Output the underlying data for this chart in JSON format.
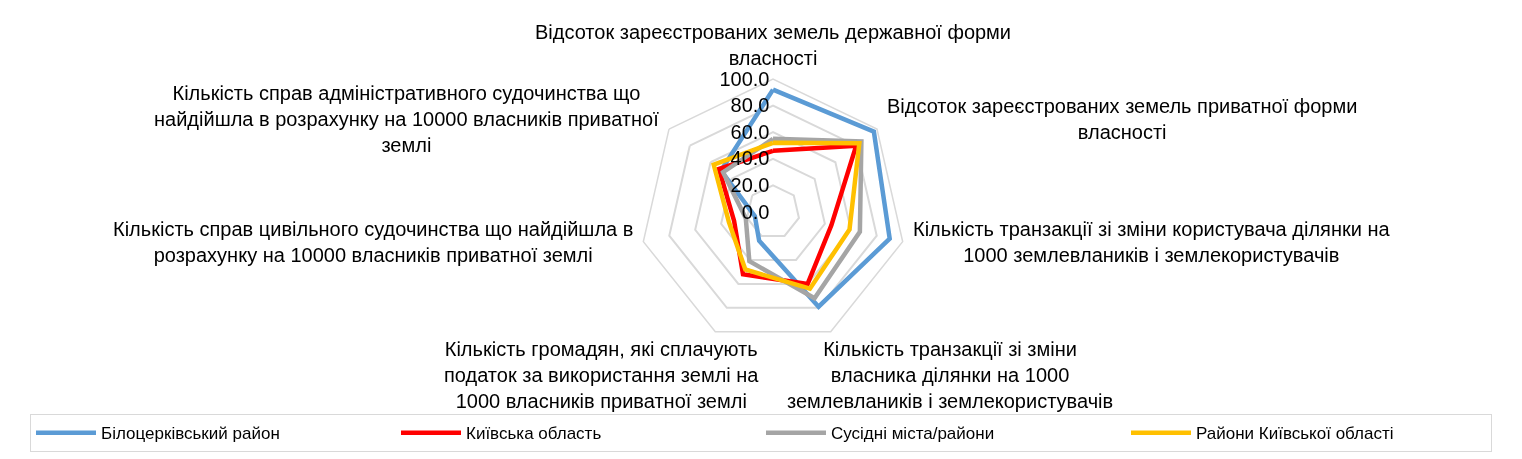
{
  "chart_data": {
    "type": "radar",
    "categories": [
      "Відсоток зареєстрованих земель державної форми власності",
      "Відсоток зареєстрованих земель приватної форми власності",
      "Кількість транзакції зі зміни користувача ділянки на 1000 землевлаників і землекористувачів",
      "Кількість транзакції зі зміни власника ділянки на 1000 землевлаників і землекористувачів",
      "Кількість громадян, які сплачують податок за використання землі на 1000 власників приватної землі",
      "Кількість справ цивільного судочинства що найдійшла в розрахунку на 10000 власників приватної землі",
      "Кількість справ адміністративного судочинства що найдійшла в розрахунку на 10000 власників приватної землі"
    ],
    "series": [
      {
        "name": "Білоцерківський район",
        "color": "#5b9bd5",
        "values": [
          92,
          97,
          90,
          79,
          24,
          14,
          50
        ]
      },
      {
        "name": "Київська область",
        "color": "#ff0000",
        "values": [
          46,
          80,
          45,
          60,
          52,
          30,
          52
        ]
      },
      {
        "name": "Сусідні міста/райони",
        "color": "#a5a5a5",
        "values": [
          55,
          85,
          67,
          72,
          41,
          21,
          48
        ]
      },
      {
        "name": "Райони Київської області",
        "color": "#ffc000",
        "values": [
          52,
          83,
          59,
          64,
          48,
          34,
          57
        ]
      }
    ],
    "ylim": [
      0,
      100
    ],
    "yticks": [
      {
        "value": 0,
        "label": "0.0"
      },
      {
        "value": 20,
        "label": "20.0"
      },
      {
        "value": 40,
        "label": "40.0"
      },
      {
        "value": 60,
        "label": "60.0"
      },
      {
        "value": 80,
        "label": "80.0"
      },
      {
        "value": 100,
        "label": "100.0"
      }
    ],
    "grid": "y",
    "legend": "bottom",
    "marker": "none",
    "line_style": "solid"
  }
}
